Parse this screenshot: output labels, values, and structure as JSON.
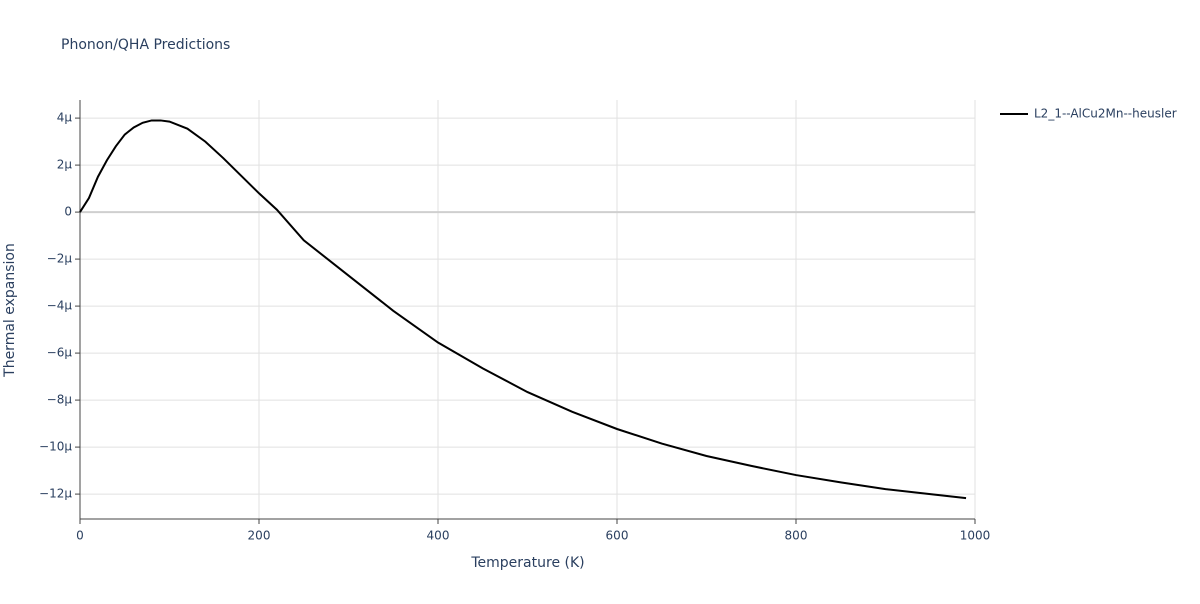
{
  "chart_data": {
    "type": "line",
    "title": "Phonon/QHA Predictions",
    "x_label": "Temperature (K)",
    "y_label": "Thermal expansion",
    "x": [
      0,
      10,
      20,
      30,
      40,
      50,
      60,
      70,
      80,
      90,
      100,
      120,
      140,
      160,
      180,
      200,
      220,
      250,
      300,
      350,
      400,
      450,
      500,
      550,
      600,
      650,
      700,
      750,
      800,
      850,
      900,
      950,
      990
    ],
    "series": [
      {
        "name": "L2_1--AlCu2Mn--heusler",
        "color": "#000000",
        "values": [
          0,
          6e-07,
          1.5e-06,
          2.2e-06,
          2.8e-06,
          3.3e-06,
          3.6e-06,
          3.8e-06,
          3.9e-06,
          3.9e-06,
          3.85e-06,
          3.55e-06,
          3e-06,
          2.3e-06,
          1.55e-06,
          8e-07,
          1e-07,
          -1.2e-06,
          -2.7e-06,
          -4.2e-06,
          -5.55e-06,
          -6.65e-06,
          -7.66e-06,
          -8.5e-06,
          -9.23e-06,
          -9.85e-06,
          -1.038e-05,
          -1.08e-05,
          -1.119e-05,
          -1.15e-05,
          -1.179e-05,
          -1.2e-05,
          -1.217e-05
        ]
      }
    ],
    "xlim": [
      0,
      1000
    ],
    "xticks": [
      0,
      200,
      400,
      600,
      800,
      1000
    ],
    "ylim": [
      -1.306e-05,
      4.77e-06
    ],
    "yticks": [
      {
        "value": 4e-06,
        "label": "4µ"
      },
      {
        "value": 2e-06,
        "label": "2µ"
      },
      0,
      {
        "value": -2e-06,
        "label": "−2µ"
      },
      {
        "value": -4e-06,
        "label": "−4µ"
      },
      {
        "value": -6e-06,
        "label": "−6µ"
      },
      {
        "value": -8e-06,
        "label": "−8µ"
      },
      {
        "value": -1e-05,
        "label": "−10µ"
      },
      {
        "value": -1.2e-05,
        "label": "−12µ"
      }
    ],
    "grid": true,
    "legend": "right"
  }
}
